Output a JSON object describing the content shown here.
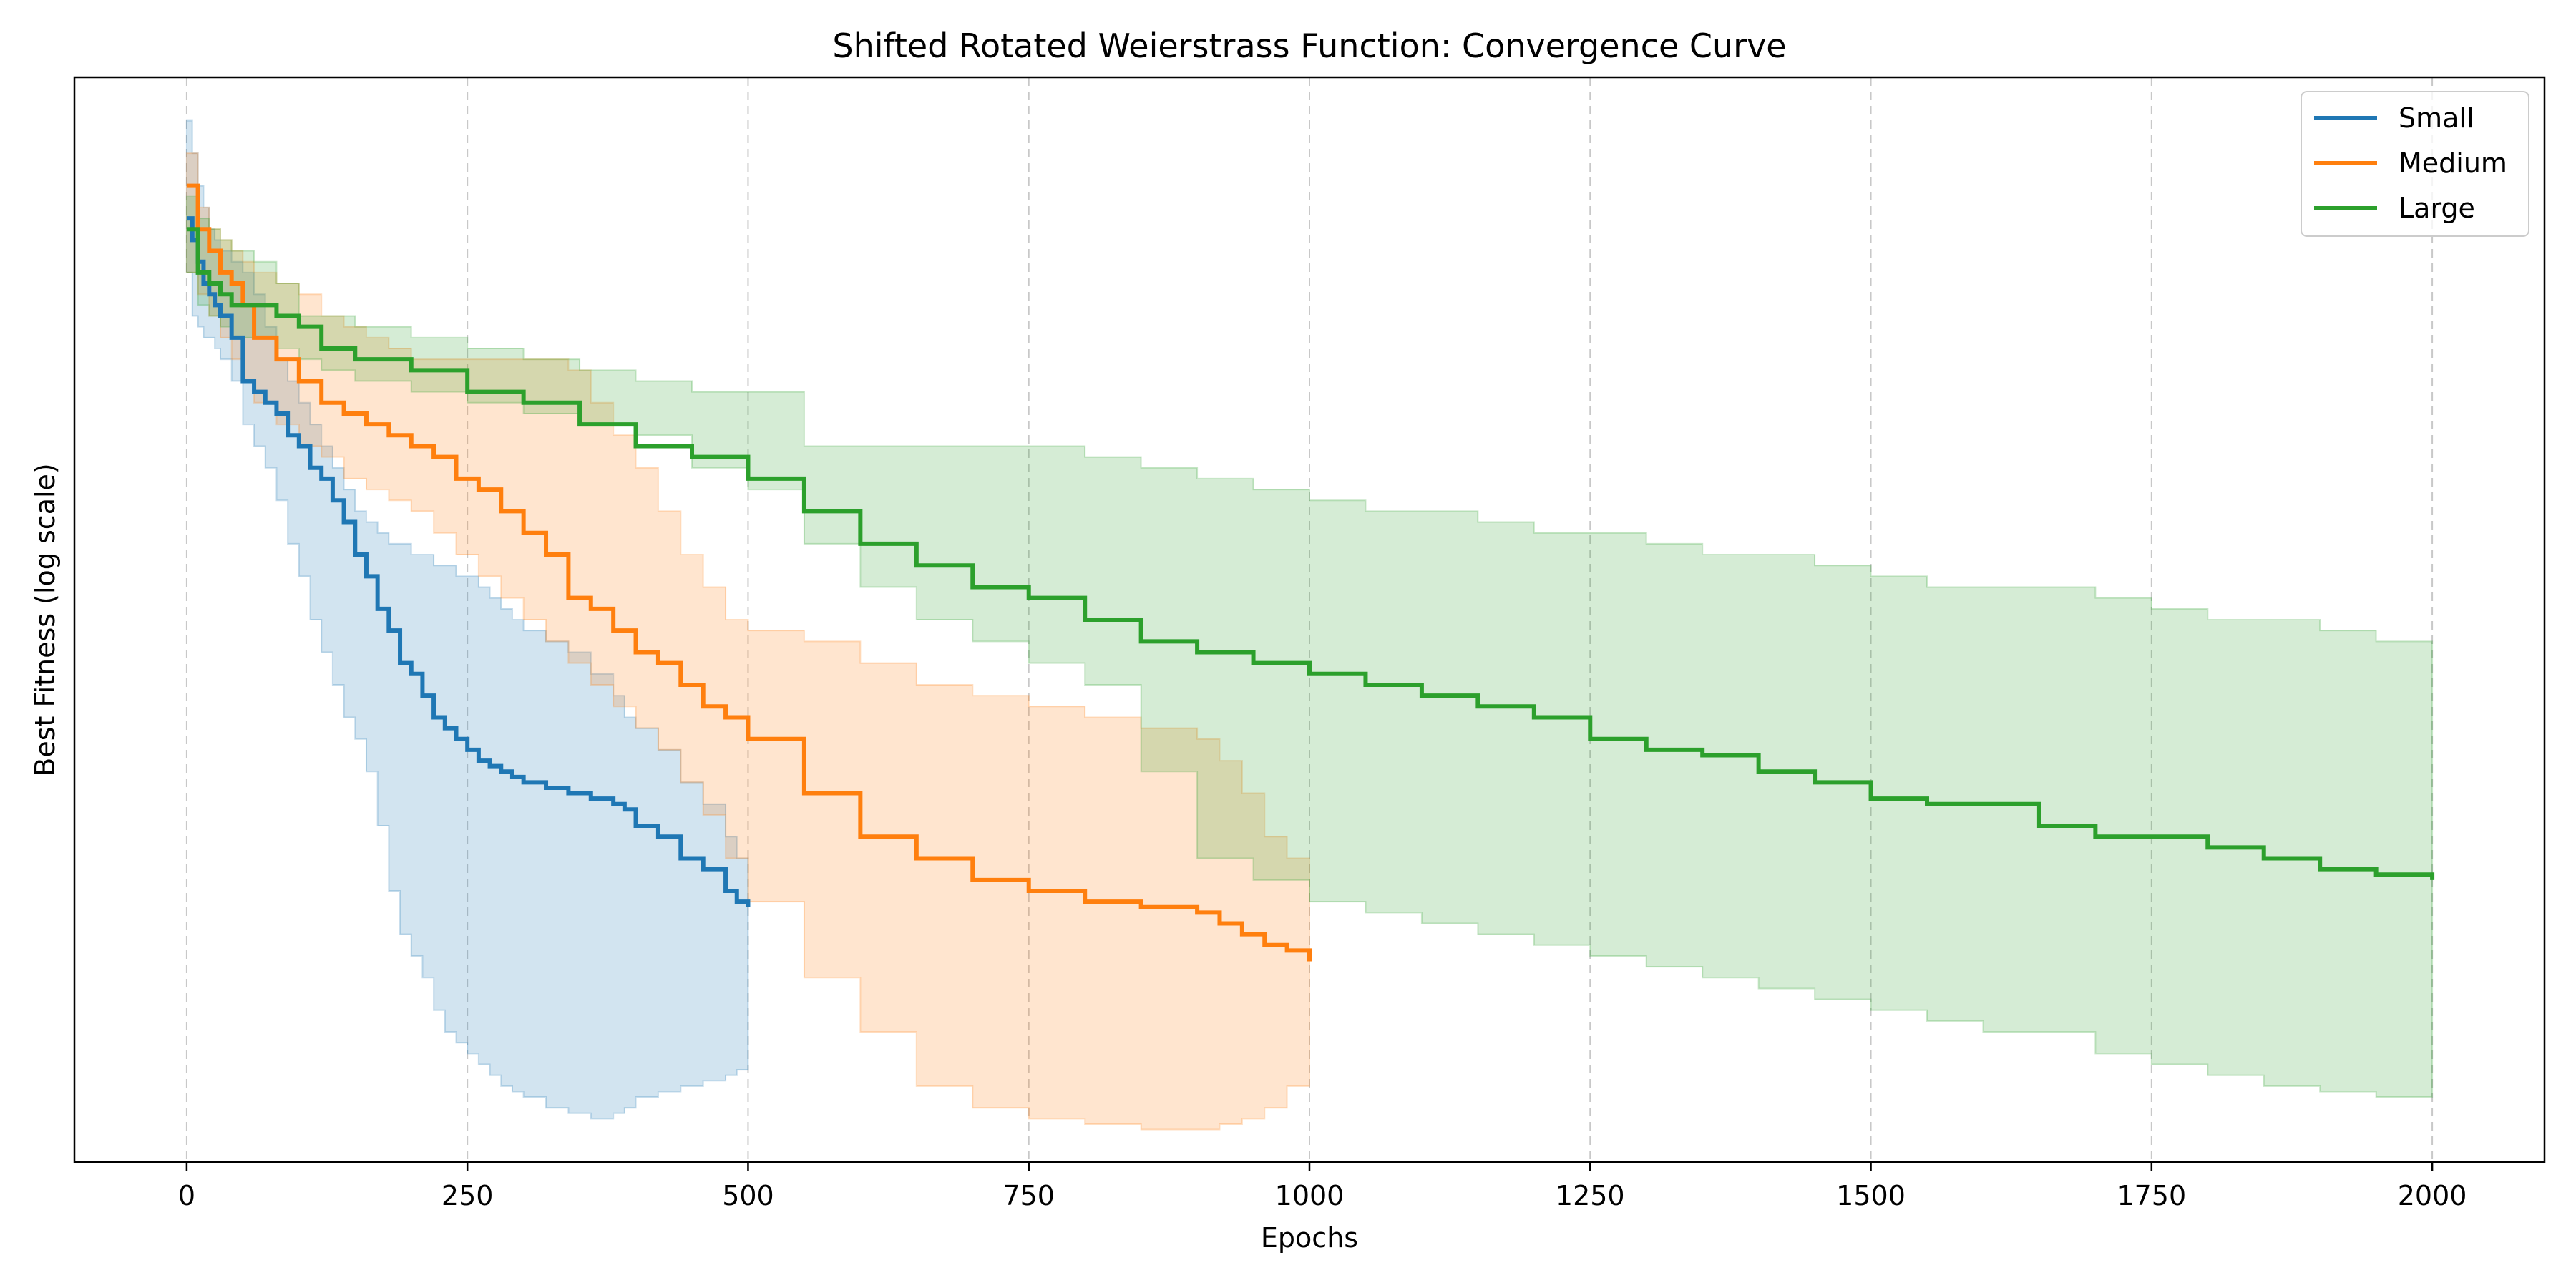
{
  "chart_data": {
    "type": "line",
    "title": "Shifted Rotated Weierstrass Function: Convergence Curve",
    "xlabel": "Epochs",
    "ylabel": "Best Fitness (log scale)",
    "yscale": "log",
    "y_tick_labels": "none",
    "xlim": [
      -100,
      2100
    ],
    "xticks": [
      0,
      250,
      500,
      750,
      1000,
      1250,
      1500,
      1750,
      2000
    ],
    "ylim": [
      0,
      1
    ],
    "grid": "vertical dashed",
    "legend_position": "top-right",
    "series": [
      {
        "name": "Small",
        "color": "#1f77b4",
        "x": [
          0,
          5,
          10,
          15,
          20,
          25,
          30,
          40,
          50,
          60,
          70,
          80,
          90,
          100,
          110,
          120,
          130,
          140,
          150,
          160,
          170,
          180,
          190,
          200,
          210,
          220,
          230,
          240,
          250,
          260,
          270,
          280,
          290,
          300,
          320,
          340,
          360,
          380,
          390,
          400,
          420,
          440,
          460,
          480,
          490,
          500
        ],
        "y": [
          0.87,
          0.85,
          0.83,
          0.81,
          0.8,
          0.79,
          0.78,
          0.76,
          0.72,
          0.71,
          0.7,
          0.69,
          0.67,
          0.66,
          0.64,
          0.63,
          0.61,
          0.59,
          0.56,
          0.54,
          0.51,
          0.49,
          0.46,
          0.45,
          0.43,
          0.41,
          0.4,
          0.39,
          0.38,
          0.37,
          0.365,
          0.36,
          0.355,
          0.35,
          0.345,
          0.34,
          0.335,
          0.33,
          0.325,
          0.31,
          0.3,
          0.28,
          0.27,
          0.25,
          0.24,
          0.235
        ],
        "lower": [
          0.82,
          0.78,
          0.77,
          0.76,
          0.76,
          0.75,
          0.74,
          0.72,
          0.68,
          0.66,
          0.64,
          0.61,
          0.57,
          0.54,
          0.5,
          0.47,
          0.44,
          0.41,
          0.39,
          0.36,
          0.31,
          0.25,
          0.21,
          0.19,
          0.17,
          0.14,
          0.12,
          0.11,
          0.1,
          0.09,
          0.08,
          0.07,
          0.065,
          0.06,
          0.05,
          0.045,
          0.04,
          0.045,
          0.05,
          0.06,
          0.065,
          0.07,
          0.075,
          0.08,
          0.085,
          0.09
        ],
        "upper": [
          0.96,
          0.93,
          0.9,
          0.88,
          0.86,
          0.85,
          0.84,
          0.83,
          0.82,
          0.8,
          0.77,
          0.74,
          0.72,
          0.7,
          0.68,
          0.66,
          0.64,
          0.62,
          0.6,
          0.59,
          0.58,
          0.57,
          0.57,
          0.56,
          0.56,
          0.55,
          0.55,
          0.54,
          0.54,
          0.53,
          0.52,
          0.51,
          0.5,
          0.49,
          0.48,
          0.47,
          0.45,
          0.43,
          0.41,
          0.4,
          0.38,
          0.35,
          0.33,
          0.3,
          0.28,
          0.26
        ]
      },
      {
        "name": "Medium",
        "color": "#ff7f0e",
        "x": [
          0,
          10,
          20,
          30,
          40,
          50,
          60,
          80,
          100,
          120,
          140,
          160,
          180,
          200,
          220,
          240,
          260,
          280,
          300,
          320,
          340,
          360,
          380,
          400,
          420,
          440,
          460,
          480,
          500,
          550,
          600,
          650,
          700,
          750,
          800,
          850,
          900,
          920,
          940,
          960,
          980,
          1000
        ],
        "y": [
          0.9,
          0.86,
          0.84,
          0.82,
          0.81,
          0.79,
          0.76,
          0.74,
          0.72,
          0.7,
          0.69,
          0.68,
          0.67,
          0.66,
          0.65,
          0.63,
          0.62,
          0.6,
          0.58,
          0.56,
          0.52,
          0.51,
          0.49,
          0.47,
          0.46,
          0.44,
          0.42,
          0.41,
          0.39,
          0.34,
          0.3,
          0.28,
          0.26,
          0.25,
          0.24,
          0.235,
          0.23,
          0.22,
          0.21,
          0.2,
          0.195,
          0.185
        ],
        "lower": [
          0.82,
          0.8,
          0.78,
          0.76,
          0.74,
          0.72,
          0.7,
          0.68,
          0.66,
          0.65,
          0.63,
          0.62,
          0.61,
          0.6,
          0.58,
          0.56,
          0.54,
          0.52,
          0.5,
          0.48,
          0.46,
          0.44,
          0.42,
          0.4,
          0.38,
          0.35,
          0.32,
          0.28,
          0.24,
          0.17,
          0.12,
          0.07,
          0.05,
          0.04,
          0.035,
          0.03,
          0.03,
          0.035,
          0.04,
          0.05,
          0.07,
          0.08
        ],
        "upper": [
          0.93,
          0.88,
          0.86,
          0.85,
          0.84,
          0.83,
          0.82,
          0.81,
          0.8,
          0.78,
          0.77,
          0.76,
          0.75,
          0.74,
          0.74,
          0.74,
          0.74,
          0.74,
          0.74,
          0.74,
          0.73,
          0.7,
          0.67,
          0.64,
          0.6,
          0.56,
          0.53,
          0.5,
          0.49,
          0.48,
          0.46,
          0.44,
          0.43,
          0.42,
          0.41,
          0.4,
          0.39,
          0.37,
          0.34,
          0.3,
          0.28,
          0.27
        ]
      },
      {
        "name": "Large",
        "color": "#2ca02c",
        "x": [
          0,
          10,
          20,
          30,
          40,
          60,
          80,
          100,
          120,
          150,
          200,
          250,
          300,
          350,
          400,
          450,
          500,
          550,
          600,
          650,
          700,
          750,
          800,
          850,
          900,
          950,
          1000,
          1050,
          1100,
          1150,
          1200,
          1250,
          1300,
          1350,
          1400,
          1450,
          1500,
          1550,
          1600,
          1650,
          1700,
          1750,
          1800,
          1850,
          1900,
          1950,
          2000
        ],
        "y": [
          0.86,
          0.82,
          0.81,
          0.8,
          0.79,
          0.79,
          0.78,
          0.77,
          0.75,
          0.74,
          0.73,
          0.71,
          0.7,
          0.68,
          0.66,
          0.65,
          0.63,
          0.6,
          0.57,
          0.55,
          0.53,
          0.52,
          0.5,
          0.48,
          0.47,
          0.46,
          0.45,
          0.44,
          0.43,
          0.42,
          0.41,
          0.39,
          0.38,
          0.375,
          0.36,
          0.35,
          0.335,
          0.33,
          0.33,
          0.31,
          0.3,
          0.3,
          0.29,
          0.28,
          0.27,
          0.265,
          0.26
        ],
        "lower": [
          0.82,
          0.79,
          0.78,
          0.77,
          0.76,
          0.76,
          0.75,
          0.74,
          0.73,
          0.72,
          0.71,
          0.7,
          0.69,
          0.68,
          0.67,
          0.64,
          0.62,
          0.57,
          0.53,
          0.5,
          0.48,
          0.46,
          0.44,
          0.36,
          0.28,
          0.26,
          0.24,
          0.23,
          0.22,
          0.21,
          0.2,
          0.19,
          0.18,
          0.17,
          0.16,
          0.15,
          0.14,
          0.13,
          0.12,
          0.12,
          0.1,
          0.09,
          0.08,
          0.07,
          0.065,
          0.06,
          0.06
        ],
        "upper": [
          0.89,
          0.87,
          0.86,
          0.85,
          0.84,
          0.83,
          0.81,
          0.78,
          0.78,
          0.77,
          0.76,
          0.75,
          0.74,
          0.73,
          0.72,
          0.71,
          0.71,
          0.66,
          0.66,
          0.66,
          0.66,
          0.66,
          0.65,
          0.64,
          0.63,
          0.62,
          0.61,
          0.6,
          0.6,
          0.59,
          0.58,
          0.58,
          0.57,
          0.56,
          0.56,
          0.55,
          0.54,
          0.53,
          0.53,
          0.53,
          0.52,
          0.51,
          0.5,
          0.5,
          0.49,
          0.48,
          0.47
        ]
      }
    ]
  }
}
